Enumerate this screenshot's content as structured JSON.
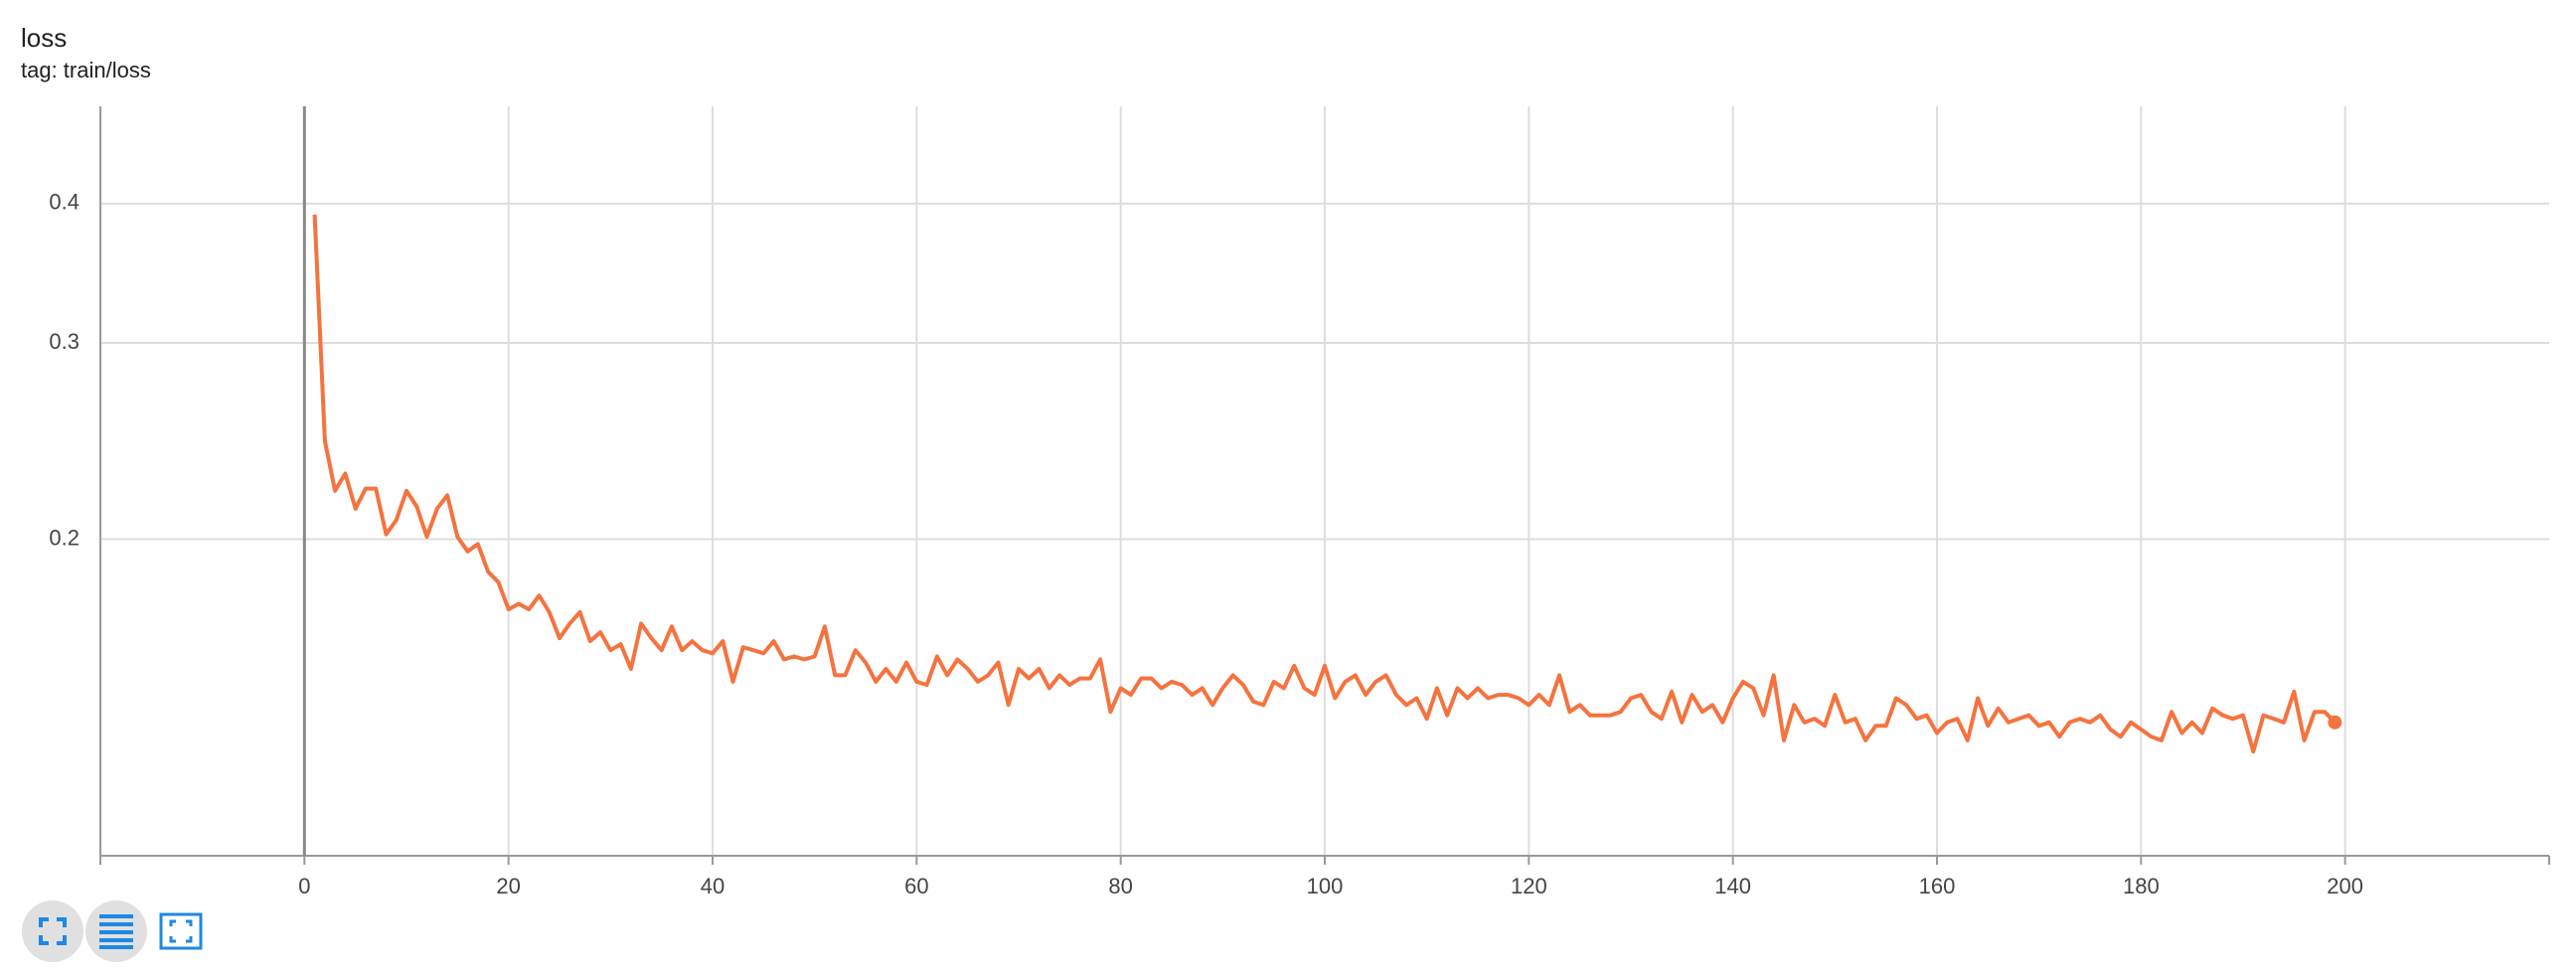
{
  "chart_data": {
    "type": "line",
    "title": "loss",
    "subtitle": "tag: train/loss",
    "color": "#f4733f",
    "log_scale": true,
    "grid": true,
    "xlim": [
      -20,
      220
    ],
    "xticks": [
      0,
      20,
      40,
      60,
      80,
      100,
      120,
      140,
      160,
      180,
      200
    ],
    "ylim": [
      0.104,
      0.489
    ],
    "yticks": [
      0.2,
      0.3,
      0.4
    ],
    "x": [
      1,
      2,
      3,
      4,
      5,
      6,
      7,
      8,
      9,
      10,
      11,
      12,
      13,
      14,
      15,
      16,
      17,
      18,
      19,
      20,
      21,
      22,
      23,
      24,
      25,
      26,
      27,
      28,
      29,
      30,
      31,
      32,
      33,
      34,
      35,
      36,
      37,
      38,
      39,
      40,
      41,
      42,
      43,
      44,
      45,
      46,
      47,
      48,
      49,
      50,
      51,
      52,
      53,
      54,
      55,
      56,
      57,
      58,
      59,
      60,
      61,
      62,
      63,
      64,
      65,
      66,
      67,
      68,
      69,
      70,
      71,
      72,
      73,
      74,
      75,
      76,
      77,
      78,
      79,
      80,
      81,
      82,
      83,
      84,
      85,
      86,
      87,
      88,
      89,
      90,
      91,
      92,
      93,
      94,
      95,
      96,
      97,
      98,
      99,
      100,
      101,
      102,
      103,
      104,
      105,
      106,
      107,
      108,
      109,
      110,
      111,
      112,
      113,
      114,
      115,
      116,
      117,
      118,
      119,
      120,
      121,
      122,
      123,
      124,
      125,
      126,
      127,
      128,
      129,
      130,
      131,
      132,
      133,
      134,
      135,
      136,
      137,
      138,
      139,
      140,
      141,
      142,
      143,
      144,
      145,
      146,
      147,
      148,
      149,
      150,
      151,
      152,
      153,
      154,
      155,
      156,
      157,
      158,
      159,
      160,
      161,
      162,
      163,
      164,
      165,
      166,
      167,
      168,
      169,
      170,
      171,
      172,
      173,
      174,
      175,
      176,
      177,
      178,
      179,
      180,
      181,
      182,
      183,
      184,
      185,
      186,
      187,
      188,
      189,
      190,
      191,
      192,
      193,
      194,
      195,
      196,
      197,
      198,
      199
    ],
    "values": [
      0.391,
      0.245,
      0.221,
      0.229,
      0.213,
      0.222,
      0.222,
      0.202,
      0.208,
      0.221,
      0.214,
      0.201,
      0.213,
      0.219,
      0.201,
      0.195,
      0.198,
      0.187,
      0.183,
      0.173,
      0.175,
      0.173,
      0.178,
      0.172,
      0.163,
      0.168,
      0.172,
      0.162,
      0.165,
      0.159,
      0.161,
      0.153,
      0.168,
      0.163,
      0.159,
      0.167,
      0.159,
      0.162,
      0.159,
      0.158,
      0.162,
      0.149,
      0.16,
      0.159,
      0.158,
      0.162,
      0.156,
      0.157,
      0.156,
      0.157,
      0.167,
      0.151,
      0.151,
      0.159,
      0.155,
      0.149,
      0.153,
      0.149,
      0.155,
      0.149,
      0.148,
      0.157,
      0.151,
      0.156,
      0.153,
      0.149,
      0.151,
      0.155,
      0.142,
      0.153,
      0.15,
      0.153,
      0.147,
      0.151,
      0.148,
      0.15,
      0.15,
      0.156,
      0.14,
      0.147,
      0.145,
      0.15,
      0.15,
      0.147,
      0.149,
      0.148,
      0.145,
      0.147,
      0.142,
      0.147,
      0.151,
      0.148,
      0.143,
      0.142,
      0.149,
      0.147,
      0.154,
      0.147,
      0.145,
      0.154,
      0.144,
      0.149,
      0.151,
      0.145,
      0.149,
      0.151,
      0.145,
      0.142,
      0.144,
      0.138,
      0.147,
      0.139,
      0.147,
      0.144,
      0.147,
      0.144,
      0.145,
      0.145,
      0.144,
      0.142,
      0.145,
      0.142,
      0.151,
      0.14,
      0.142,
      0.139,
      0.139,
      0.139,
      0.14,
      0.144,
      0.145,
      0.14,
      0.138,
      0.146,
      0.137,
      0.145,
      0.14,
      0.142,
      0.137,
      0.144,
      0.149,
      0.147,
      0.139,
      0.151,
      0.132,
      0.142,
      0.137,
      0.138,
      0.136,
      0.145,
      0.137,
      0.138,
      0.132,
      0.136,
      0.136,
      0.144,
      0.142,
      0.138,
      0.139,
      0.134,
      0.137,
      0.138,
      0.132,
      0.144,
      0.136,
      0.141,
      0.137,
      0.138,
      0.139,
      0.136,
      0.137,
      0.133,
      0.137,
      0.138,
      0.137,
      0.139,
      0.135,
      0.133,
      0.137,
      0.135,
      0.133,
      0.132,
      0.14,
      0.134,
      0.137,
      0.134,
      0.141,
      0.139,
      0.138,
      0.139,
      0.129,
      0.139,
      0.138,
      0.137,
      0.146,
      0.132,
      0.14,
      0.14,
      0.137
    ]
  }
}
